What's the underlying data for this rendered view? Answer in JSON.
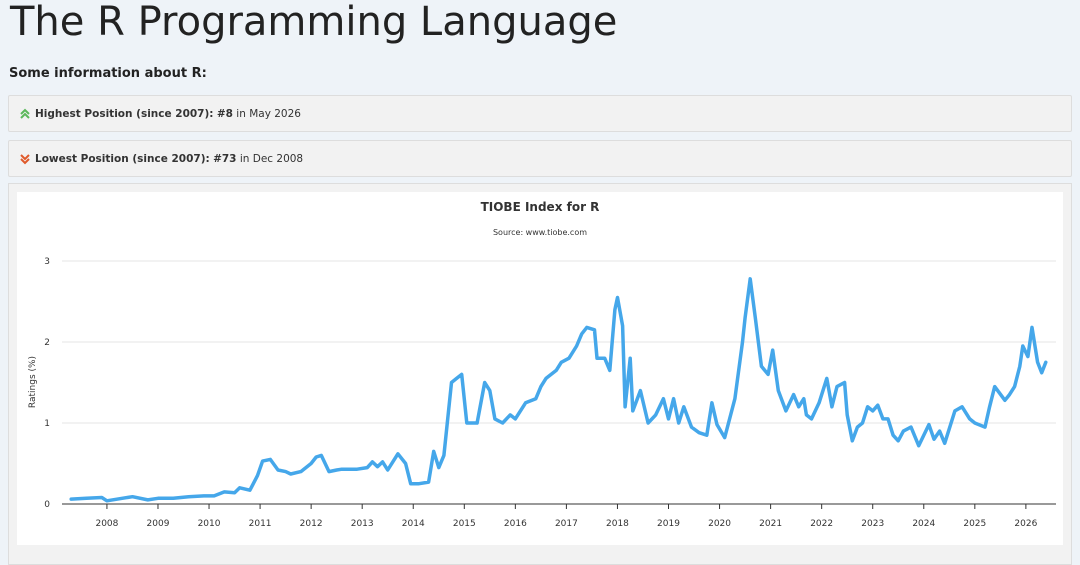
{
  "header": {
    "title": "The R Programming Language",
    "subtitle": "Some information about R:"
  },
  "info": [
    {
      "label": "Highest Position (since 2007):",
      "position": "#8",
      "text": "in May 2026"
    },
    {
      "label": "Lowest Position (since 2007):",
      "position": "#73",
      "text": "in Dec 2008"
    }
  ],
  "chart_data": {
    "type": "line",
    "title": "TIOBE Index for R",
    "subtitle": "Source: www.tiobe.com",
    "y_label": "Ratings (%)",
    "xlim": [
      2007.12,
      2026.59
    ],
    "xticks": [
      2008,
      2009,
      2010,
      2011,
      2012,
      2013,
      2014,
      2015,
      2016,
      2017,
      2018,
      2019,
      2020,
      2021,
      2022,
      2023,
      2024,
      2025,
      2026
    ],
    "ylim": [
      0,
      3
    ],
    "yticks": [
      0,
      1,
      2,
      3
    ],
    "grid": true,
    "series": [
      {
        "name": "R",
        "color": "#45a7ea",
        "x": [
          2007.3,
          2007.6,
          2007.9,
          2008.0,
          2008.3,
          2008.5,
          2008.8,
          2009.0,
          2009.3,
          2009.6,
          2009.9,
          2010.1,
          2010.3,
          2010.5,
          2010.6,
          2010.8,
          2010.95,
          2011.05,
          2011.2,
          2011.35,
          2011.5,
          2011.6,
          2011.8,
          2012.0,
          2012.1,
          2012.2,
          2012.35,
          2012.5,
          2012.6,
          2012.9,
          2013.1,
          2013.2,
          2013.3,
          2013.4,
          2013.5,
          2013.7,
          2013.85,
          2013.95,
          2014.1,
          2014.3,
          2014.4,
          2014.5,
          2014.6,
          2014.75,
          2014.85,
          2014.95,
          2015.05,
          2015.25,
          2015.4,
          2015.5,
          2015.6,
          2015.75,
          2015.9,
          2016.0,
          2016.2,
          2016.4,
          2016.5,
          2016.6,
          2016.8,
          2016.9,
          2017.05,
          2017.2,
          2017.3,
          2017.4,
          2017.55,
          2017.6,
          2017.75,
          2017.85,
          2017.95,
          2018.0,
          2018.1,
          2018.15,
          2018.25,
          2018.3,
          2018.45,
          2018.6,
          2018.75,
          2018.9,
          2019.0,
          2019.1,
          2019.2,
          2019.3,
          2019.45,
          2019.6,
          2019.75,
          2019.85,
          2019.95,
          2020.1,
          2020.3,
          2020.45,
          2020.5,
          2020.6,
          2020.7,
          2020.82,
          2020.95,
          2021.04,
          2021.15,
          2021.3,
          2021.45,
          2021.55,
          2021.65,
          2021.7,
          2021.8,
          2021.95,
          2022.1,
          2022.2,
          2022.3,
          2022.45,
          2022.5,
          2022.6,
          2022.7,
          2022.8,
          2022.9,
          2023.0,
          2023.1,
          2023.2,
          2023.3,
          2023.4,
          2023.5,
          2023.6,
          2023.75,
          2023.9,
          2024.1,
          2024.2,
          2024.31,
          2024.41,
          2024.61,
          2024.75,
          2024.9,
          2025.0,
          2025.2,
          2025.29,
          2025.39,
          2025.59,
          2025.68,
          2025.78,
          2025.88,
          2025.94,
          2026.04,
          2026.12,
          2026.23,
          2026.31,
          2026.39
        ],
        "values": [
          0.06,
          0.07,
          0.08,
          0.04,
          0.07,
          0.09,
          0.05,
          0.07,
          0.07,
          0.09,
          0.1,
          0.1,
          0.15,
          0.14,
          0.2,
          0.17,
          0.35,
          0.53,
          0.55,
          0.42,
          0.4,
          0.37,
          0.4,
          0.5,
          0.58,
          0.6,
          0.4,
          0.42,
          0.43,
          0.43,
          0.45,
          0.52,
          0.46,
          0.52,
          0.42,
          0.62,
          0.5,
          0.25,
          0.25,
          0.27,
          0.65,
          0.45,
          0.6,
          1.5,
          1.55,
          1.6,
          1.0,
          1.0,
          1.5,
          1.4,
          1.05,
          1.0,
          1.1,
          1.05,
          1.25,
          1.3,
          1.45,
          1.55,
          1.65,
          1.75,
          1.8,
          1.95,
          2.1,
          2.18,
          2.15,
          1.8,
          1.8,
          1.65,
          2.4,
          2.55,
          2.2,
          1.2,
          1.8,
          1.15,
          1.4,
          1.0,
          1.1,
          1.3,
          1.05,
          1.3,
          1.0,
          1.2,
          0.95,
          0.88,
          0.85,
          1.25,
          0.98,
          0.82,
          1.3,
          2.0,
          2.3,
          2.78,
          2.3,
          1.7,
          1.6,
          1.9,
          1.4,
          1.15,
          1.35,
          1.2,
          1.3,
          1.1,
          1.05,
          1.25,
          1.55,
          1.2,
          1.45,
          1.5,
          1.1,
          0.78,
          0.95,
          1.0,
          1.2,
          1.15,
          1.22,
          1.05,
          1.05,
          0.85,
          0.78,
          0.9,
          0.95,
          0.72,
          0.98,
          0.8,
          0.9,
          0.75,
          1.15,
          1.2,
          1.05,
          1.0,
          0.95,
          1.2,
          1.45,
          1.28,
          1.35,
          1.45,
          1.7,
          1.95,
          1.82,
          2.18,
          1.75,
          1.62,
          1.75
        ]
      }
    ]
  }
}
